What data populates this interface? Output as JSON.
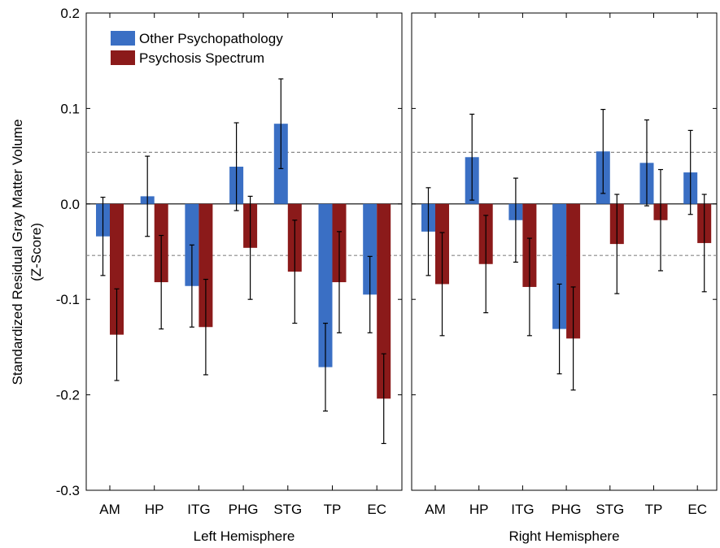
{
  "chart_data": [
    {
      "type": "bar",
      "panel": "left",
      "xlabel": "Left Hemisphere",
      "ylabel": "Standardized Residual Gray Matter Volume",
      "ylabel2": "(Z-Score)",
      "categories": [
        "AM",
        "HP",
        "ITG",
        "PHG",
        "STG",
        "TP",
        "EC"
      ],
      "ylim": [
        -0.3,
        0.2
      ],
      "yticks": [
        "-0.3",
        "-0.2",
        "-0.1",
        "0.0",
        "0.1",
        "0.2"
      ],
      "reference_lines": [
        0.054,
        -0.054
      ],
      "series": [
        {
          "name": "Other Psychopathology",
          "values": [
            -0.034,
            0.008,
            -0.086,
            0.039,
            0.084,
            -0.171,
            -0.095
          ],
          "error": [
            0.041,
            0.042,
            0.043,
            0.046,
            0.047,
            0.046,
            0.04
          ]
        },
        {
          "name": "Psychosis Spectrum",
          "values": [
            -0.137,
            -0.082,
            -0.129,
            -0.046,
            -0.071,
            -0.082,
            -0.204
          ],
          "error": [
            0.048,
            0.049,
            0.05,
            0.054,
            0.054,
            0.053,
            0.047
          ]
        }
      ],
      "legend": "top-left"
    },
    {
      "type": "bar",
      "panel": "right",
      "xlabel": "Right Hemisphere",
      "categories": [
        "AM",
        "HP",
        "ITG",
        "PHG",
        "STG",
        "TP",
        "EC"
      ],
      "ylim": [
        -0.3,
        0.2
      ],
      "reference_lines": [
        0.054,
        -0.054
      ],
      "series": [
        {
          "name": "Other Psychopathology",
          "values": [
            -0.029,
            0.049,
            -0.017,
            -0.131,
            0.055,
            0.043,
            0.033
          ],
          "error": [
            0.046,
            0.045,
            0.044,
            0.047,
            0.044,
            0.045,
            0.044
          ]
        },
        {
          "name": "Psychosis Spectrum",
          "values": [
            -0.084,
            -0.063,
            -0.087,
            -0.141,
            -0.042,
            -0.017,
            -0.041
          ],
          "error": [
            0.054,
            0.051,
            0.051,
            0.054,
            0.052,
            0.053,
            0.051
          ]
        }
      ]
    }
  ],
  "colors": {
    "other": "#3a6fc4",
    "psychosis": "#8b1a1a",
    "reference_line": "#888888"
  }
}
